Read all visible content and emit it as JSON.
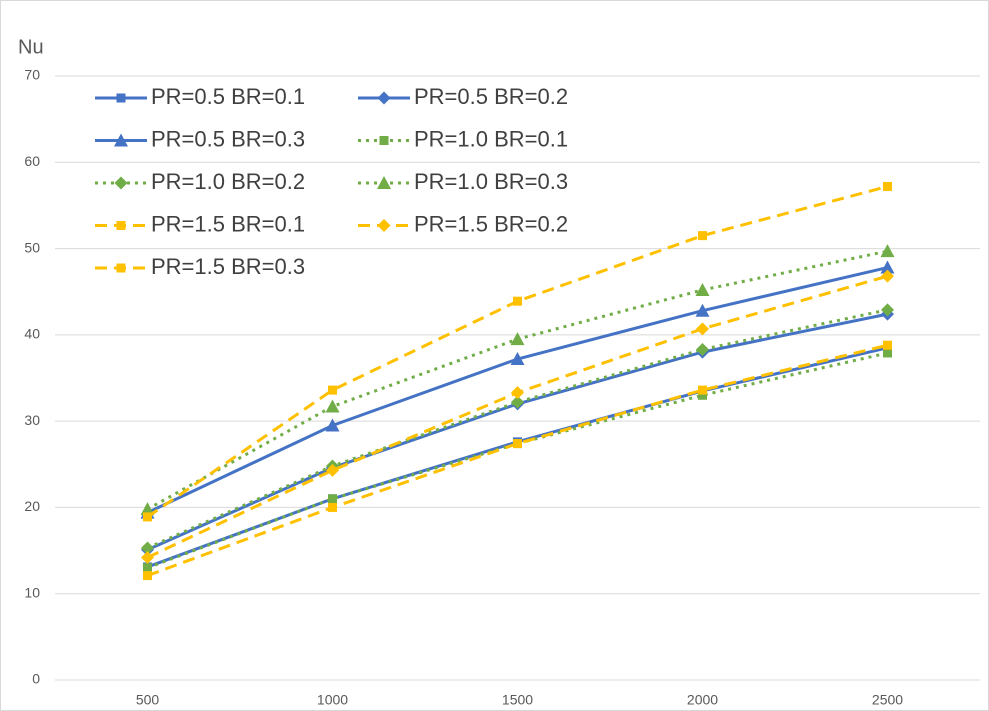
{
  "chart_data": {
    "type": "line",
    "y_label": "Nu",
    "categories": [
      500,
      1000,
      1500,
      2000,
      2500
    ],
    "ylim": [
      0,
      70
    ],
    "yticks": [
      0,
      10,
      20,
      30,
      40,
      50,
      60,
      70
    ],
    "grid": true,
    "legend": "upper left",
    "series": [
      {
        "name": "PR=0.5 BR=0.1",
        "color": "#4472c4",
        "dash": "solid",
        "marker": "square",
        "values": [
          13.1,
          21.0,
          27.6,
          33.5,
          38.5
        ]
      },
      {
        "name": "PR=0.5 BR=0.2",
        "color": "#4472c4",
        "dash": "solid",
        "marker": "diamond",
        "values": [
          15.1,
          24.6,
          32.0,
          38.0,
          42.4
        ]
      },
      {
        "name": "PR=0.5 BR=0.3",
        "color": "#4472c4",
        "dash": "solid",
        "marker": "triangle",
        "values": [
          19.4,
          29.5,
          37.2,
          42.8,
          47.8
        ]
      },
      {
        "name": "PR=1.0 BR=0.1",
        "color": "#70ad47",
        "dash": "dot",
        "marker": "square",
        "values": [
          13.0,
          21.0,
          27.4,
          33.0,
          37.9
        ]
      },
      {
        "name": "PR=1.0 BR=0.2",
        "color": "#70ad47",
        "dash": "dot",
        "marker": "diamond",
        "values": [
          15.3,
          24.8,
          32.2,
          38.3,
          42.9
        ]
      },
      {
        "name": "PR=1.0 BR=0.3",
        "color": "#70ad47",
        "dash": "dot",
        "marker": "triangle",
        "values": [
          19.8,
          31.7,
          39.5,
          45.2,
          49.7
        ]
      },
      {
        "name": "PR=1.5 BR=0.1",
        "color": "#ffc000",
        "dash": "dash",
        "marker": "square",
        "values": [
          12.1,
          20.0,
          27.4,
          33.6,
          38.8
        ]
      },
      {
        "name": "PR=1.5 BR=0.2",
        "color": "#ffc000",
        "dash": "dash",
        "marker": "diamond",
        "values": [
          14.2,
          24.3,
          33.3,
          40.7,
          46.8
        ]
      },
      {
        "name": "PR=1.5 BR=0.3",
        "color": "#ffc000",
        "dash": "dash",
        "marker": "square",
        "values": [
          18.9,
          33.6,
          43.9,
          51.5,
          57.2
        ]
      }
    ]
  }
}
